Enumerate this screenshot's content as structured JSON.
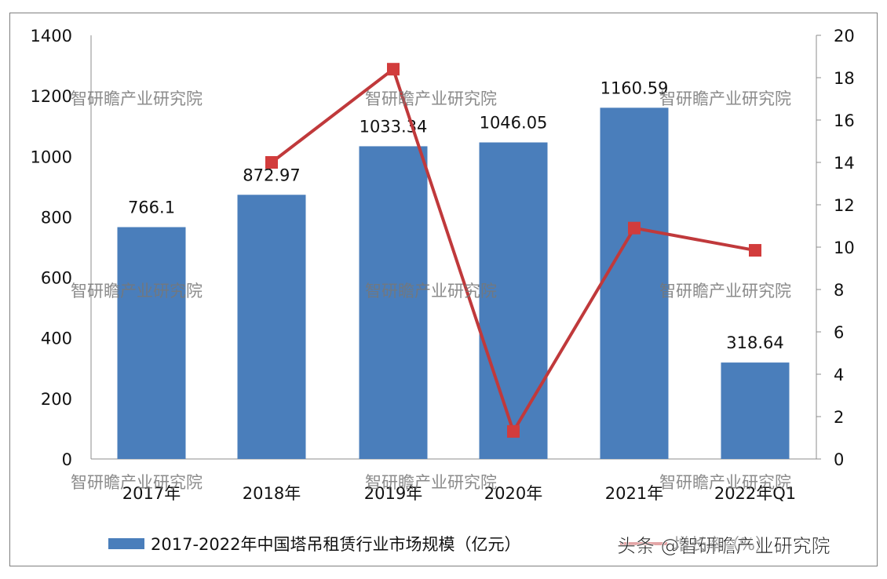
{
  "chart_data": {
    "type": "bar+line",
    "title": "",
    "categories": [
      "2017年",
      "2018年",
      "2019年",
      "2020年",
      "2021年",
      "2022年Q1"
    ],
    "series": [
      {
        "name": "2017-2022年中国塔吊租赁行业市场规模（亿元）",
        "type": "bar",
        "axis": "left",
        "color": "#4a7ebb",
        "values": [
          766.1,
          872.97,
          1033.34,
          1046.05,
          1160.59,
          318.64
        ],
        "labels": [
          "766.1",
          "872.97",
          "1033.34",
          "1046.05",
          "1160.59",
          "318.64"
        ]
      },
      {
        "name": "增长率（%）",
        "type": "line",
        "axis": "right",
        "color": "#c0393b",
        "values": [
          null,
          14.0,
          18.4,
          1.3,
          10.9,
          9.85
        ]
      }
    ],
    "left_axis": {
      "min": 0,
      "max": 1400,
      "ticks": [
        0,
        200,
        400,
        600,
        800,
        1000,
        1200,
        1400
      ]
    },
    "right_axis": {
      "min": 0,
      "max": 20,
      "ticks": [
        0,
        2,
        4,
        6,
        8,
        10,
        12,
        14,
        16,
        18,
        20
      ]
    },
    "legend_position": "bottom",
    "grid": false
  },
  "watermark": "智研瞻产业研究院",
  "footer_watermark": "头条 @智研瞻产业研究院"
}
